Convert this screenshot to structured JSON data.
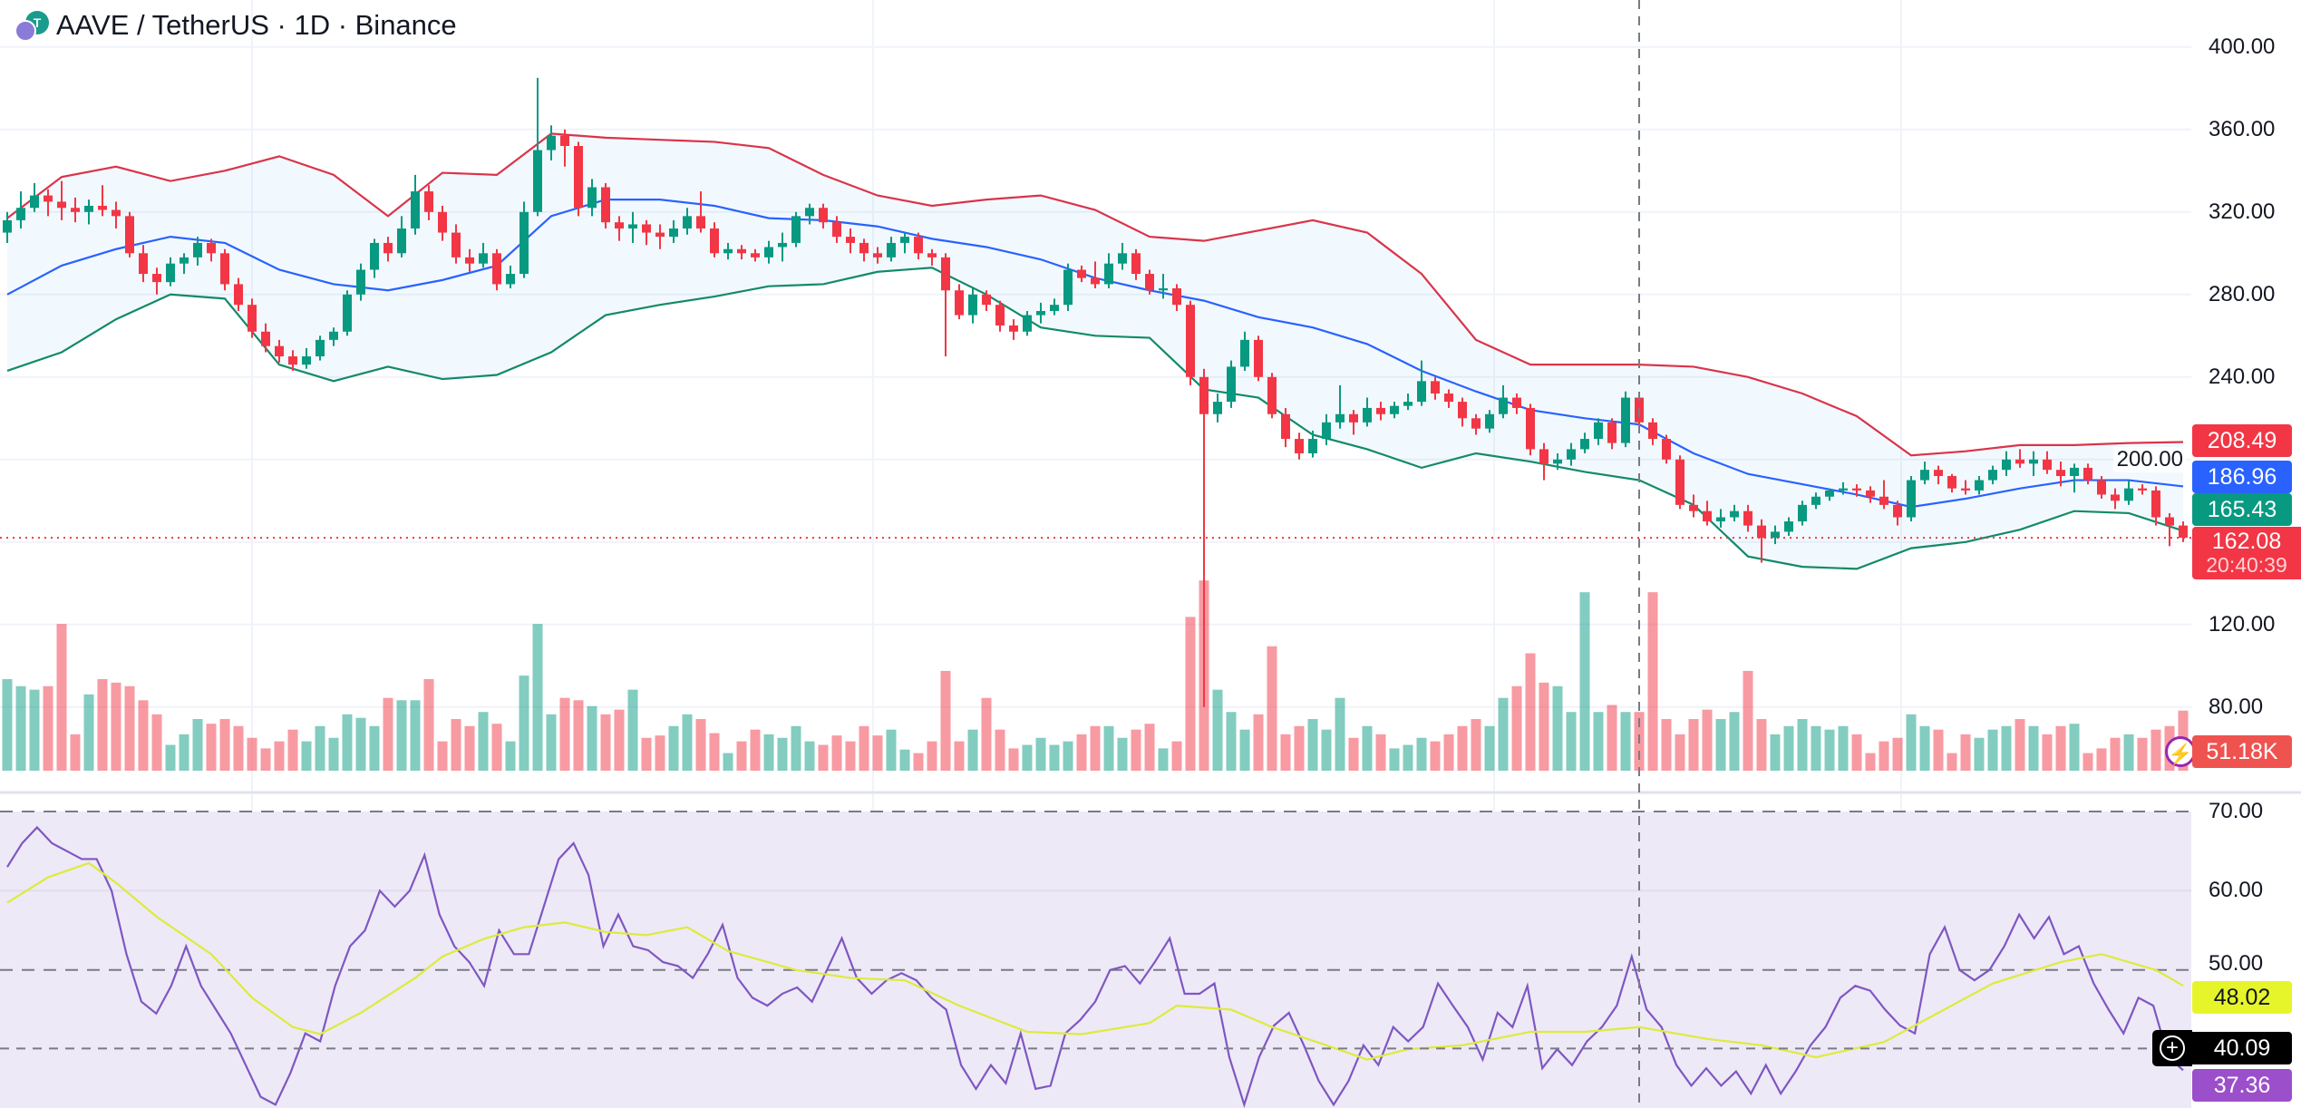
{
  "header": {
    "title": "AAVE / TetherUS · 1D · Binance",
    "logo_letter": "T"
  },
  "colors": {
    "up": "#089981",
    "down": "#F23645",
    "bb_upper": "#D9344A",
    "bb_basis": "#2962FF",
    "bb_lower": "#138a68",
    "rsi": "#7E57C2",
    "rsi_ma": "#DDEB3C",
    "rsi_band": "#EEE9F7"
  },
  "labels": {
    "bb_upper": "208.49",
    "bb_basis": "186.96",
    "bb_lower": "165.43",
    "last_price": "162.08",
    "countdown": "20:40:39",
    "volume": "51.18K",
    "rsi_ma": "48.02",
    "crosshair_rsi": "40.09",
    "rsi": "37.36"
  },
  "price_ticks": [
    "400.00",
    "360.00",
    "320.00",
    "280.00",
    "240.00",
    "200.00",
    "120.00",
    "80.00"
  ],
  "rsi_ticks": [
    "70.00",
    "60.00",
    "50.00"
  ],
  "chart_data": {
    "type": "candlestick",
    "title": "AAVE / TetherUS · 1D · Binance",
    "ylim": [
      62,
      410
    ],
    "rsi_ylim": [
      30,
      72
    ],
    "grid": true,
    "last_price": 162.08,
    "crosshair_index": 120,
    "ohlc": [
      [
        310,
        320,
        305,
        316
      ],
      [
        316,
        330,
        312,
        322
      ],
      [
        322,
        334,
        320,
        328
      ],
      [
        328,
        331,
        318,
        325
      ],
      [
        325,
        335,
        316,
        322
      ],
      [
        322,
        327,
        315,
        320
      ],
      [
        320,
        326,
        314,
        323
      ],
      [
        323,
        333,
        318,
        321
      ],
      [
        321,
        325,
        312,
        318
      ],
      [
        318,
        320,
        298,
        300
      ],
      [
        300,
        304,
        286,
        290
      ],
      [
        290,
        293,
        280,
        286
      ],
      [
        286,
        298,
        284,
        295
      ],
      [
        295,
        300,
        290,
        298
      ],
      [
        298,
        308,
        294,
        305
      ],
      [
        305,
        307,
        296,
        300
      ],
      [
        300,
        302,
        282,
        285
      ],
      [
        285,
        288,
        272,
        275
      ],
      [
        275,
        278,
        259,
        262
      ],
      [
        262,
        266,
        252,
        255
      ],
      [
        255,
        258,
        247,
        250
      ],
      [
        250,
        253,
        243,
        246
      ],
      [
        246,
        254,
        244,
        250
      ],
      [
        250,
        260,
        248,
        258
      ],
      [
        258,
        264,
        255,
        262
      ],
      [
        262,
        282,
        260,
        280
      ],
      [
        280,
        295,
        277,
        292
      ],
      [
        292,
        307,
        288,
        305
      ],
      [
        305,
        308,
        296,
        300
      ],
      [
        300,
        318,
        298,
        312
      ],
      [
        312,
        338,
        309,
        330
      ],
      [
        330,
        333,
        316,
        320
      ],
      [
        320,
        323,
        306,
        310
      ],
      [
        310,
        314,
        295,
        298
      ],
      [
        298,
        302,
        291,
        295
      ],
      [
        295,
        305,
        293,
        300
      ],
      [
        300,
        302,
        282,
        285
      ],
      [
        285,
        294,
        283,
        290
      ],
      [
        290,
        325,
        288,
        320
      ],
      [
        320,
        385,
        318,
        350
      ],
      [
        350,
        362,
        345,
        357
      ],
      [
        357,
        360,
        342,
        352
      ],
      [
        352,
        354,
        318,
        322
      ],
      [
        322,
        336,
        318,
        332
      ],
      [
        332,
        334,
        312,
        315
      ],
      [
        315,
        318,
        306,
        312
      ],
      [
        312,
        320,
        305,
        314
      ],
      [
        314,
        316,
        304,
        310
      ],
      [
        310,
        314,
        302,
        308
      ],
      [
        308,
        316,
        305,
        312
      ],
      [
        312,
        322,
        309,
        318
      ],
      [
        318,
        330,
        310,
        312
      ],
      [
        312,
        315,
        298,
        300
      ],
      [
        300,
        305,
        297,
        302
      ],
      [
        302,
        304,
        297,
        300
      ],
      [
        300,
        302,
        296,
        298
      ],
      [
        298,
        306,
        295,
        303
      ],
      [
        303,
        310,
        296,
        305
      ],
      [
        305,
        320,
        303,
        318
      ],
      [
        318,
        324,
        314,
        322
      ],
      [
        322,
        324,
        312,
        315
      ],
      [
        315,
        318,
        305,
        308
      ],
      [
        308,
        312,
        300,
        305
      ],
      [
        305,
        307,
        296,
        300
      ],
      [
        300,
        303,
        295,
        298
      ],
      [
        298,
        308,
        296,
        305
      ],
      [
        305,
        310,
        300,
        308
      ],
      [
        308,
        310,
        297,
        300
      ],
      [
        300,
        302,
        294,
        298
      ],
      [
        298,
        300,
        250,
        282
      ],
      [
        282,
        285,
        268,
        270
      ],
      [
        270,
        283,
        266,
        280
      ],
      [
        280,
        282,
        272,
        275
      ],
      [
        275,
        277,
        262,
        265
      ],
      [
        265,
        268,
        258,
        262
      ],
      [
        262,
        272,
        260,
        270
      ],
      [
        270,
        276,
        266,
        272
      ],
      [
        272,
        278,
        270,
        275
      ],
      [
        275,
        295,
        272,
        292
      ],
      [
        292,
        294,
        286,
        288
      ],
      [
        288,
        296,
        283,
        285
      ],
      [
        285,
        300,
        283,
        295
      ],
      [
        295,
        305,
        292,
        300
      ],
      [
        300,
        302,
        287,
        290
      ],
      [
        290,
        292,
        280,
        282
      ],
      [
        282,
        290,
        278,
        283
      ],
      [
        283,
        285,
        272,
        275
      ],
      [
        275,
        277,
        236,
        240
      ],
      [
        240,
        244,
        80,
        222
      ],
      [
        222,
        232,
        218,
        228
      ],
      [
        228,
        248,
        225,
        245
      ],
      [
        245,
        262,
        243,
        258
      ],
      [
        258,
        260,
        238,
        240
      ],
      [
        240,
        242,
        220,
        222
      ],
      [
        222,
        225,
        206,
        210
      ],
      [
        210,
        213,
        200,
        203
      ],
      [
        203,
        214,
        201,
        210
      ],
      [
        210,
        222,
        207,
        218
      ],
      [
        218,
        236,
        215,
        222
      ],
      [
        222,
        224,
        212,
        218
      ],
      [
        218,
        230,
        216,
        225
      ],
      [
        225,
        228,
        219,
        222
      ],
      [
        222,
        228,
        220,
        226
      ],
      [
        226,
        232,
        224,
        228
      ],
      [
        228,
        248,
        226,
        238
      ],
      [
        238,
        240,
        229,
        232
      ],
      [
        232,
        234,
        225,
        228
      ],
      [
        228,
        230,
        216,
        220
      ],
      [
        220,
        222,
        212,
        215
      ],
      [
        215,
        224,
        213,
        222
      ],
      [
        222,
        236,
        220,
        230
      ],
      [
        230,
        232,
        222,
        225
      ],
      [
        225,
        227,
        202,
        205
      ],
      [
        205,
        208,
        190,
        198
      ],
      [
        198,
        203,
        195,
        200
      ],
      [
        200,
        208,
        197,
        205
      ],
      [
        205,
        213,
        203,
        210
      ],
      [
        210,
        220,
        207,
        218
      ],
      [
        218,
        220,
        205,
        208
      ],
      [
        208,
        233,
        206,
        230
      ],
      [
        230,
        232,
        215,
        218
      ],
      [
        218,
        220,
        207,
        210
      ],
      [
        210,
        212,
        198,
        200
      ],
      [
        200,
        202,
        176,
        178
      ],
      [
        178,
        183,
        172,
        175
      ],
      [
        175,
        180,
        168,
        170
      ],
      [
        170,
        176,
        167,
        172
      ],
      [
        172,
        178,
        170,
        175
      ],
      [
        175,
        178,
        165,
        168
      ],
      [
        168,
        171,
        150,
        162
      ],
      [
        162,
        168,
        159,
        165
      ],
      [
        165,
        172,
        163,
        170
      ],
      [
        170,
        180,
        168,
        178
      ],
      [
        178,
        184,
        176,
        182
      ],
      [
        182,
        186,
        180,
        185
      ],
      [
        185,
        189,
        183,
        186
      ],
      [
        186,
        188,
        182,
        185
      ],
      [
        185,
        187,
        179,
        182
      ],
      [
        182,
        190,
        176,
        178
      ],
      [
        178,
        180,
        168,
        172
      ],
      [
        172,
        192,
        170,
        190
      ],
      [
        190,
        199,
        188,
        195
      ],
      [
        195,
        197,
        188,
        192
      ],
      [
        192,
        193,
        184,
        186
      ],
      [
        186,
        190,
        183,
        185
      ],
      [
        185,
        192,
        183,
        190
      ],
      [
        190,
        197,
        188,
        195
      ],
      [
        195,
        204,
        192,
        200
      ],
      [
        200,
        205,
        196,
        198
      ],
      [
        198,
        204,
        192,
        200
      ],
      [
        200,
        204,
        193,
        195
      ],
      [
        195,
        199,
        187,
        192
      ],
      [
        192,
        198,
        184,
        196
      ],
      [
        196,
        198,
        188,
        190
      ],
      [
        190,
        192,
        181,
        183
      ],
      [
        183,
        186,
        176,
        180
      ],
      [
        180,
        190,
        178,
        186
      ],
      [
        186,
        188,
        183,
        185
      ],
      [
        185,
        187,
        168,
        172
      ],
      [
        172,
        174,
        158,
        168
      ],
      [
        168,
        170,
        160,
        162.08
      ]
    ],
    "volume_k": [
      78,
      72,
      69,
      72,
      125,
      31,
      65,
      78,
      75,
      72,
      60,
      48,
      22,
      31,
      44,
      40,
      44,
      38,
      28,
      19,
      25,
      35,
      25,
      38,
      28,
      48,
      45,
      38,
      62,
      60,
      60,
      78,
      25,
      44,
      38,
      50,
      40,
      25,
      81,
      125,
      48,
      62,
      60,
      55,
      48,
      52,
      69,
      28,
      30,
      38,
      48,
      44,
      32,
      15,
      25,
      35,
      31,
      28,
      38,
      25,
      22,
      30,
      25,
      38,
      30,
      35,
      18,
      15,
      25,
      85,
      25,
      35,
      62,
      35,
      19,
      22,
      28,
      22,
      25,
      31,
      38,
      38,
      28,
      35,
      40,
      19,
      25,
      131,
      162,
      69,
      50,
      35,
      48,
      106,
      31,
      38,
      44,
      35,
      62,
      28,
      38,
      31,
      19,
      22,
      28,
      25,
      31,
      38,
      44,
      38,
      62,
      72,
      100,
      75,
      72,
      50,
      152,
      50,
      56,
      50,
      50,
      152,
      44,
      31,
      44,
      52,
      44,
      50,
      85,
      44,
      31,
      38,
      44,
      38,
      35,
      38,
      31,
      15,
      25,
      28,
      48,
      38,
      35,
      15,
      31,
      28,
      35,
      38,
      44,
      38,
      31,
      38,
      40,
      15,
      19,
      28,
      31,
      28,
      35,
      38,
      51.18
    ],
    "bollinger": [
      [
        0,
        317,
        280,
        243
      ],
      [
        4,
        337,
        294,
        252
      ],
      [
        8,
        342,
        302,
        268
      ],
      [
        12,
        335,
        308,
        280
      ],
      [
        16,
        340,
        305,
        278
      ],
      [
        20,
        347,
        292,
        246
      ],
      [
        24,
        338,
        285,
        238
      ],
      [
        28,
        318,
        282,
        245
      ],
      [
        32,
        339,
        287,
        239
      ],
      [
        36,
        338,
        294,
        241
      ],
      [
        40,
        358,
        318,
        252
      ],
      [
        44,
        356,
        326,
        270
      ],
      [
        48,
        355,
        326,
        275
      ],
      [
        52,
        354,
        323,
        279
      ],
      [
        56,
        351,
        317,
        284
      ],
      [
        60,
        338,
        316,
        285
      ],
      [
        64,
        328,
        313,
        291
      ],
      [
        68,
        323,
        307,
        293
      ],
      [
        72,
        326,
        303,
        280
      ],
      [
        76,
        328,
        297,
        264
      ],
      [
        80,
        321,
        288,
        260
      ],
      [
        84,
        308,
        282,
        259
      ],
      [
        88,
        306,
        277,
        234
      ],
      [
        92,
        311,
        269,
        230
      ],
      [
        96,
        316,
        264,
        212
      ],
      [
        100,
        310,
        256,
        205
      ],
      [
        104,
        290,
        243,
        196
      ],
      [
        108,
        258,
        233,
        203
      ],
      [
        112,
        246,
        224,
        199
      ],
      [
        116,
        246,
        220,
        194
      ],
      [
        120,
        246,
        217,
        190
      ],
      [
        124,
        245,
        203,
        178
      ],
      [
        128,
        240,
        193,
        153
      ],
      [
        132,
        232,
        188,
        148
      ],
      [
        136,
        221,
        183,
        147
      ],
      [
        140,
        202,
        177,
        157
      ],
      [
        144,
        204,
        181,
        160
      ],
      [
        148,
        207,
        186,
        166
      ],
      [
        152,
        207,
        190,
        175
      ],
      [
        156,
        208,
        190,
        174
      ],
      [
        160,
        208.49,
        186.96,
        165.43
      ]
    ],
    "rsi": [
      63,
      66,
      68,
      66,
      65,
      64,
      64,
      60,
      52,
      46,
      44.5,
      48,
      53,
      48,
      45,
      42,
      38,
      34,
      33,
      37,
      42,
      41,
      48,
      53,
      55,
      60,
      58,
      60,
      64.5,
      57,
      53,
      51,
      48,
      55,
      52,
      52,
      58,
      64,
      66,
      62,
      53,
      57,
      53,
      52.5,
      51,
      50.5,
      49,
      52,
      55.7,
      49,
      46.5,
      45.5,
      47,
      47.8,
      46,
      50,
      54,
      49,
      47,
      48.7,
      49.6,
      48.7,
      46.5,
      45,
      38,
      35,
      38,
      35.7,
      42,
      35,
      35.4,
      42,
      43.7,
      46,
      50,
      50.5,
      48.3,
      51,
      54,
      47,
      47,
      48.3,
      39,
      33,
      39,
      43,
      44.6,
      40.5,
      36,
      33,
      36,
      40.5,
      38,
      42.8,
      41,
      42.8,
      48.3,
      45.5,
      42.8,
      38.7,
      44.6,
      42.8,
      48,
      37.6,
      40,
      38,
      41,
      42.8,
      45.5,
      51.7,
      45,
      42.8,
      38,
      35.4,
      37.6,
      35.4,
      37.2,
      34.4,
      38,
      34.4,
      37.2,
      40.5,
      42.8,
      46.5,
      48,
      47.4,
      45,
      43,
      42,
      52,
      55.4,
      50,
      48.7,
      50,
      53,
      57,
      54,
      56.7,
      52,
      53,
      48.3,
      45,
      42,
      46.5,
      45.5,
      39,
      37.36
    ],
    "rsi_ma": [
      [
        0,
        58.5
      ],
      [
        3,
        61.7
      ],
      [
        6,
        63.5
      ],
      [
        8,
        61
      ],
      [
        11,
        56.7
      ],
      [
        15,
        52
      ],
      [
        18,
        46.5
      ],
      [
        21,
        42.8
      ],
      [
        23,
        41.9
      ],
      [
        26,
        44.6
      ],
      [
        30,
        49
      ],
      [
        32,
        51.7
      ],
      [
        35,
        53.9
      ],
      [
        38,
        55.4
      ],
      [
        41,
        56
      ],
      [
        44,
        54.8
      ],
      [
        47,
        54.4
      ],
      [
        50,
        55.4
      ],
      [
        53,
        52.4
      ],
      [
        58,
        50
      ],
      [
        62,
        49
      ],
      [
        66,
        48.7
      ],
      [
        70,
        45.5
      ],
      [
        75,
        42.2
      ],
      [
        79,
        41.9
      ],
      [
        84,
        43.3
      ],
      [
        86,
        45.5
      ],
      [
        90,
        45
      ],
      [
        93,
        42.8
      ],
      [
        97,
        40.5
      ],
      [
        100,
        38.7
      ],
      [
        103,
        40
      ],
      [
        107,
        40.5
      ],
      [
        112,
        42.2
      ],
      [
        116,
        42.2
      ],
      [
        120,
        42.8
      ],
      [
        125,
        41.3
      ],
      [
        129,
        40.5
      ],
      [
        133,
        39
      ],
      [
        138,
        40.9
      ],
      [
        142,
        44.6
      ],
      [
        146,
        48.3
      ],
      [
        151,
        51
      ],
      [
        154,
        52
      ],
      [
        158,
        50
      ],
      [
        160,
        48.02
      ]
    ]
  }
}
